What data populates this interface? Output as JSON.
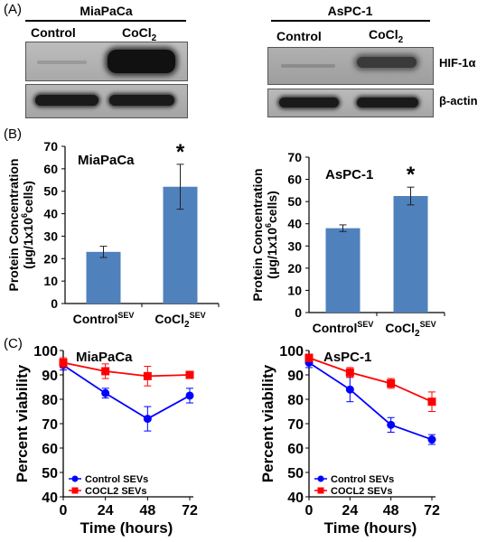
{
  "panels": {
    "a": {
      "letter": "(A)",
      "groups": [
        {
          "title": "MiaPaCa",
          "lanes": [
            "Control",
            "CoCl2"
          ]
        },
        {
          "title": "AsPC-1",
          "lanes": [
            "Control",
            "CoCl2"
          ]
        }
      ],
      "row_labels": [
        "HIF-1α",
        "β-actin"
      ],
      "blot_intensity": {
        "miapaca_hif": [
          0.05,
          0.95
        ],
        "miapaca_actin": [
          0.85,
          0.85
        ],
        "aspc_hif": [
          0.08,
          0.55
        ],
        "aspc_actin": [
          0.8,
          0.8
        ]
      }
    },
    "b": {
      "letter": "(B)",
      "label_prefix_control": "Control",
      "label_prefix_cocl": "CoCl",
      "sub_2": "2",
      "sup_sev": "SEV",
      "ylabel_line1": "Protein Concentration",
      "ylabel_line2_a": "(μg/1x10",
      "ylabel_line2_sup": "6",
      "ylabel_line2_b": "cells)",
      "star": "*"
    },
    "c": {
      "letter": "(C)"
    }
  },
  "chart_data": [
    {
      "type": "bar",
      "title": "MiaPaCa",
      "categories": [
        "ControlSEV",
        "CoCl2SEV"
      ],
      "values": [
        23,
        52
      ],
      "errors": [
        2.5,
        10
      ],
      "ylabel": "Protein Concentration (μg/1x10^6cells)",
      "ylim": [
        0,
        70
      ],
      "yticks": [
        0,
        10,
        20,
        30,
        40,
        50,
        60,
        70
      ],
      "significance": [
        false,
        true
      ],
      "color": "#4f81bd"
    },
    {
      "type": "bar",
      "title": "AsPC-1",
      "categories": [
        "ControlSEV",
        "CoCl2SEV"
      ],
      "values": [
        38,
        52.5
      ],
      "errors": [
        1.5,
        4
      ],
      "ylabel": "Protein Concentration (μg/1x10^6cells)",
      "ylim": [
        0,
        70
      ],
      "yticks": [
        0,
        10,
        20,
        30,
        40,
        50,
        60,
        70
      ],
      "significance": [
        false,
        true
      ],
      "color": "#4f81bd"
    },
    {
      "type": "line",
      "title": "MiaPaCa",
      "x": [
        0,
        24,
        48,
        72
      ],
      "xlabel": "Time (hours)",
      "ylabel": "Percent viability",
      "ylim": [
        40,
        100
      ],
      "yticks": [
        40,
        50,
        60,
        70,
        80,
        90,
        100
      ],
      "xticks": [
        0,
        24,
        48,
        72
      ],
      "series": [
        {
          "name": "Control SEVs",
          "values": [
            94,
            82.5,
            72,
            81.5
          ],
          "errors": [
            2,
            2,
            5,
            3
          ],
          "color": "#0000ff",
          "marker": "circle"
        },
        {
          "name": "COCL2 SEVs",
          "values": [
            95,
            91.5,
            89.5,
            90
          ],
          "errors": [
            2,
            3,
            4,
            1
          ],
          "color": "#ff0000",
          "marker": "square"
        }
      ],
      "legend_position": "bottom-left"
    },
    {
      "type": "line",
      "title": "AsPC-1",
      "x": [
        0,
        24,
        48,
        72
      ],
      "xlabel": "Time (hours)",
      "ylabel": "Percent viability",
      "ylim": [
        40,
        100
      ],
      "yticks": [
        40,
        50,
        60,
        70,
        80,
        90,
        100
      ],
      "xticks": [
        0,
        24,
        48,
        72
      ],
      "series": [
        {
          "name": "Control SEVs",
          "values": [
            95,
            84,
            69.5,
            63.5
          ],
          "errors": [
            2,
            5,
            3,
            2
          ],
          "color": "#0000ff",
          "marker": "circle"
        },
        {
          "name": "COCL2 SEVs",
          "values": [
            97,
            91,
            86.5,
            79
          ],
          "errors": [
            1.5,
            2,
            2,
            4
          ],
          "color": "#ff0000",
          "marker": "square"
        }
      ],
      "legend_position": "bottom-left"
    }
  ]
}
